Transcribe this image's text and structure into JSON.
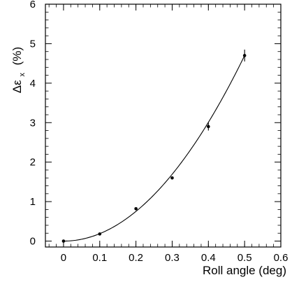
{
  "chart_data": {
    "type": "scatter",
    "title": "",
    "xlabel": "Roll angle (deg)",
    "ylabel_symbol": "Δε",
    "ylabel_subscript": "x",
    "ylabel_unit": "(%)",
    "xlim": [
      -0.05,
      0.6
    ],
    "ylim": [
      -0.15,
      6
    ],
    "x_ticks": [
      "0",
      "0.1",
      "0.2",
      "0.3",
      "0.4",
      "0.5",
      "0.6"
    ],
    "y_ticks": [
      "0",
      "1",
      "2",
      "3",
      "4",
      "5",
      "6"
    ],
    "grid": false,
    "legend": "none",
    "series": [
      {
        "x": [
          0,
          0.1,
          0.2,
          0.3,
          0.4,
          0.5
        ],
        "y": [
          0.0,
          0.18,
          0.82,
          1.6,
          2.9,
          4.7
        ],
        "yerr": [
          0.02,
          0.03,
          0.03,
          0.04,
          0.1,
          0.15
        ]
      }
    ],
    "fit_curve": {
      "model": "quadratic",
      "coefficients": [
        0.0,
        0.0,
        18.8
      ],
      "x_range": [
        0,
        0.5
      ]
    }
  }
}
